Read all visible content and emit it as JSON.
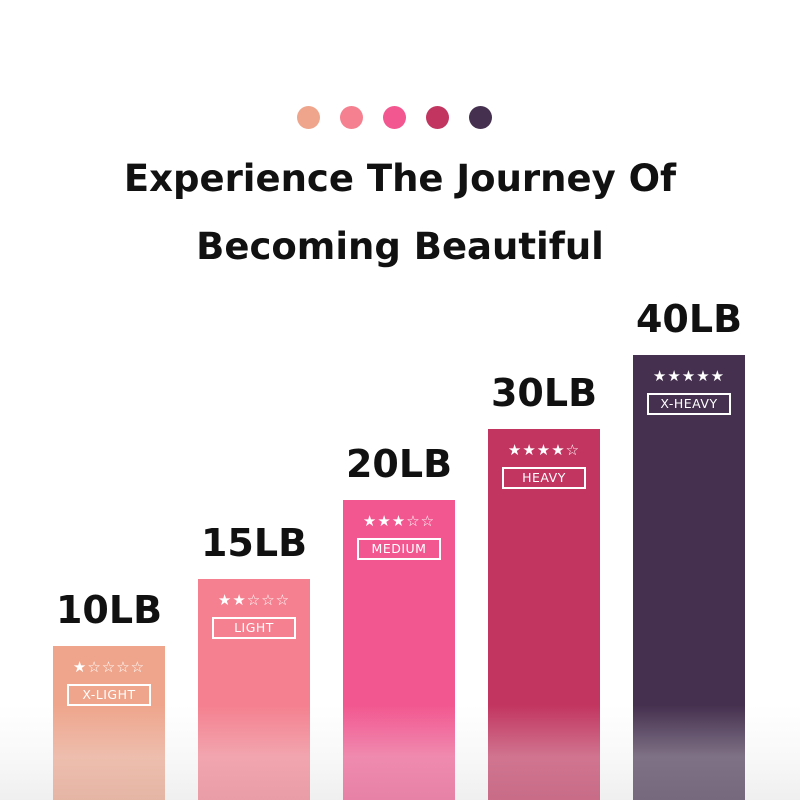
{
  "title_line1": "Experience The Journey Of",
  "title_line2": "Becoming Beautiful",
  "levels": [
    {
      "weight": "10LB",
      "stars": "★☆☆☆☆",
      "rating": 1,
      "label": "X-LIGHT",
      "color": "#EFA58C"
    },
    {
      "weight": "15LB",
      "stars": "★★☆☆☆",
      "rating": 2,
      "label": "LIGHT",
      "color": "#F5808F"
    },
    {
      "weight": "20LB",
      "stars": "★★★☆☆",
      "rating": 3,
      "label": "MEDIUM",
      "color": "#F2578F"
    },
    {
      "weight": "30LB",
      "stars": "★★★★☆",
      "rating": 4,
      "label": "HEAVY",
      "color": "#C23560"
    },
    {
      "weight": "40LB",
      "stars": "★★★★★",
      "rating": 5,
      "label": "X-HEAVY",
      "color": "#45304F"
    }
  ]
}
